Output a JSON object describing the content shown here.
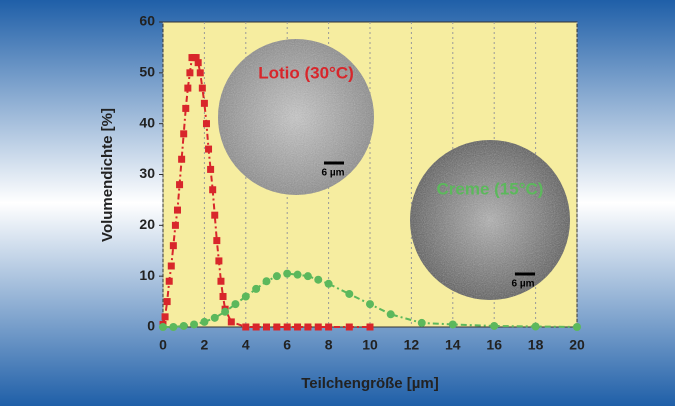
{
  "chart_data": {
    "type": "line",
    "y_label": "Volumendichte [%]",
    "x_label": "Teilchengröße [µm]",
    "annotations": [
      "Lotio (30°C)",
      "Creme (15°C)",
      "6 µm",
      "6 µm"
    ],
    "series": [
      {
        "color": "#d8262b",
        "marker": "square",
        "x": [
          0,
          0.1,
          0.2,
          0.3,
          0.4,
          0.5,
          0.6,
          0.7,
          0.8,
          0.9,
          1.0,
          1.1,
          1.2,
          1.3,
          1.4,
          1.5,
          1.6,
          1.7,
          1.8,
          1.9,
          2.0,
          2.1,
          2.2,
          2.3,
          2.4,
          2.5,
          2.6,
          2.7,
          2.8,
          2.9,
          3.0,
          3.3,
          4.0,
          4.5,
          5.0,
          5.5,
          6.0,
          6.5,
          7.0,
          7.5,
          8.0,
          9.0,
          10.0
        ],
        "values": [
          0.5,
          2,
          5,
          9,
          12,
          16,
          20,
          23,
          28,
          33,
          38,
          43,
          47,
          50,
          53,
          53,
          53,
          52,
          50,
          47,
          44,
          40,
          35,
          31,
          27,
          22,
          17,
          13,
          9,
          6,
          3.5,
          1,
          0,
          0,
          0,
          0,
          0,
          0,
          0,
          0,
          0,
          0,
          0
        ]
      },
      {
        "color": "#5cb85c",
        "marker": "circle",
        "x": [
          0,
          0.5,
          1,
          1.5,
          2,
          2.5,
          3,
          3.5,
          4,
          4.5,
          5,
          5.5,
          6,
          6.5,
          7,
          7.5,
          8,
          9,
          10,
          11,
          12.5,
          14,
          16,
          18,
          20
        ],
        "values": [
          0,
          0,
          0.2,
          0.5,
          1,
          1.8,
          3,
          4.5,
          6,
          7.5,
          9,
          10,
          10.5,
          10.3,
          10,
          9.3,
          8.5,
          6.5,
          4.5,
          2.5,
          0.8,
          0.5,
          0.2,
          0.1,
          0
        ]
      }
    ],
    "xlim": [
      0,
      20
    ],
    "xticks": [
      0,
      2,
      4,
      6,
      8,
      10,
      12,
      14,
      16,
      18,
      20
    ],
    "ylim": [
      0,
      60
    ],
    "yticks": [
      0,
      10,
      20,
      30,
      40,
      50,
      60
    ],
    "grid": true
  }
}
